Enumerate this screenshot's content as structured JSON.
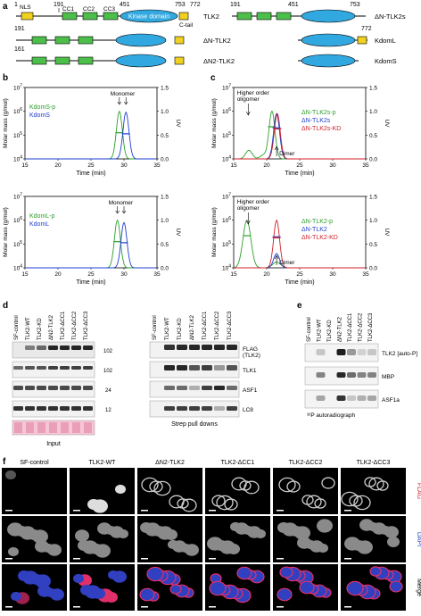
{
  "panel_a": {
    "label": "a",
    "constructs": [
      {
        "name": "TLK2",
        "start": "1",
        "nls": "NLS",
        "cc": [
          "CC1",
          "CC2",
          "CC3"
        ],
        "kinase_label": "Kinase domain",
        "markers": [
          "191",
          "451",
          "753",
          "772"
        ],
        "ctail": "C-tail"
      },
      {
        "name": "ΔN-TLK2",
        "start": "191"
      },
      {
        "name": "ΔN2-TLK2",
        "start": "161"
      },
      {
        "name": "ΔN-TLK2s",
        "markers": [
          "191",
          "451",
          "753"
        ]
      },
      {
        "name": "KdomL",
        "end": "772"
      },
      {
        "name": "KdomS"
      }
    ]
  },
  "panel_b": {
    "label": "b",
    "charts_label_y": "Molar mass (g/mol)",
    "charts_label_y2": "UV",
    "xlabel": "Time (min)"
  },
  "panel_c": {
    "label": "c"
  },
  "chart_data": [
    {
      "type": "line",
      "panel": "b-top",
      "xlabel": "Time (min)",
      "ylabel": "Molar mass (g/mol)",
      "y2label": "UV",
      "xlim": [
        15,
        35
      ],
      "xticks": [
        "15",
        "20",
        "25",
        "30",
        "35"
      ],
      "yticks": [
        "10^4",
        "10^5",
        "10^6",
        "10^7"
      ],
      "y2ticks": [
        "0.0",
        "0.5",
        "1.0",
        "1.5"
      ],
      "y2lim": [
        0,
        1.5
      ],
      "series": [
        {
          "name": "KdomS-p",
          "color": "#2ca02c",
          "peak_x": 29.3,
          "peak": 1.0
        },
        {
          "name": "KdomS",
          "color": "#1f3fd0",
          "peak_x": 30.3,
          "peak": 0.98
        }
      ],
      "annotation": "Monomer"
    },
    {
      "type": "line",
      "panel": "b-bottom",
      "xlabel": "Time (min)",
      "ylabel": "Molar mass (g/mol)",
      "y2label": "UV",
      "xlim": [
        15,
        35
      ],
      "xticks": [
        "15",
        "20",
        "25",
        "30",
        "35"
      ],
      "yticks": [
        "10^4",
        "10^5",
        "10^6",
        "10^7"
      ],
      "y2ticks": [
        "0.0",
        "0.5",
        "1.0",
        "1.5"
      ],
      "y2lim": [
        0,
        1.5
      ],
      "series": [
        {
          "name": "KdomL-p",
          "color": "#2ca02c",
          "peak_x": 29.0,
          "peak": 1.0
        },
        {
          "name": "KdomL",
          "color": "#1f3fd0",
          "peak_x": 30.0,
          "peak": 0.95
        }
      ],
      "annotation": "Monomer"
    },
    {
      "type": "line",
      "panel": "c-top",
      "xlabel": "Time (min)",
      "ylabel": "Molar mass (g/mol)",
      "y2label": "UV",
      "xlim": [
        15,
        35
      ],
      "xticks": [
        "15",
        "20",
        "25",
        "30",
        "35"
      ],
      "yticks": [
        "10^4",
        "10^5",
        "10^6",
        "10^7"
      ],
      "y2ticks": [
        "0.0",
        "0.5",
        "1.0",
        "1.5"
      ],
      "y2lim": [
        0,
        1.5
      ],
      "series": [
        {
          "name": "ΔN-TLK2s-p",
          "color": "#2ca02c",
          "peak_x": 20.8,
          "peak": 1.0
        },
        {
          "name": "ΔN-TLK2s",
          "color": "#1f3fd0",
          "peak_x": 21.5,
          "peak": 0.95
        },
        {
          "name": "ΔN-TLK2s-KD",
          "color": "#d0202a",
          "peak_x": 21.6,
          "peak": 0.95
        }
      ],
      "annotations": [
        "Higher order oligomer",
        "Dimer"
      ]
    },
    {
      "type": "line",
      "panel": "c-bottom",
      "xlabel": "Time (min)",
      "ylabel": "Molar mass (g/mol)",
      "y2label": "UV",
      "xlim": [
        15,
        35
      ],
      "xticks": [
        "15",
        "20",
        "25",
        "30",
        "35"
      ],
      "yticks": [
        "10^4",
        "10^5",
        "10^6",
        "10^7"
      ],
      "y2ticks": [
        "0.0",
        "0.5",
        "1.0",
        "1.5"
      ],
      "y2lim": [
        0,
        1.5
      ],
      "series": [
        {
          "name": "ΔN-TLK2-p",
          "color": "#2ca02c",
          "peak_x": 17.0,
          "peak": 1.0
        },
        {
          "name": "ΔN-TLK2",
          "color": "#1f3fd0",
          "peak_x": 21.5,
          "peak": 0.3
        },
        {
          "name": "ΔN-TLK2-KD",
          "color": "#d0202a",
          "peak_x": 21.5,
          "peak": 1.0
        }
      ],
      "annotations": [
        "Higher order oligomer",
        "Dimer"
      ]
    }
  ],
  "panel_d": {
    "label": "d",
    "lanes": [
      "SF-control",
      "TLK2-WT",
      "TLK2-KD",
      "ΔN2-TLK2",
      "TLK2-ΔCC1",
      "TLK2-ΔCC2",
      "TLK2-ΔCC3"
    ],
    "rows": [
      "FLAG\n(TLK2)",
      "TLK1",
      "ASF1",
      "LC8"
    ],
    "mw_markers": [
      "102",
      "102",
      "24",
      "12"
    ],
    "input_label": "Input",
    "pulldown_label": "Strep pull downs"
  },
  "panel_e": {
    "label": "e",
    "lanes": [
      "SF-control",
      "TLK2-WT",
      "TLK2-KD",
      "ΔN2-TLK2",
      "TLK2-ΔCC1",
      "TLK2-ΔCC2",
      "TLK2-ΔCC3"
    ],
    "rows": [
      "TLK2 [auto-P]",
      "MBP",
      "ASF1a"
    ],
    "footer": "³²P autoradiograph"
  },
  "panel_f": {
    "label": "f",
    "columns": [
      "SF-control",
      "TLK2-WT",
      "ΔN2-TLK2",
      "TLK2-ΔCC1",
      "TLK2-ΔCC2",
      "TLK2-ΔCC3"
    ],
    "channels": [
      {
        "name": "FLAG",
        "color": "#d0202a"
      },
      {
        "name": "DAPI",
        "color": "#2040c0"
      },
      {
        "name": "Merge",
        "color": "#000000"
      }
    ]
  },
  "colors": {
    "green": "#2ca02c",
    "blue": "#1f3fd0",
    "red": "#d0202a",
    "domain_green": "#4cbf4a",
    "domain_blue": "#32a8e0",
    "ctail_yellow": "#f0d020"
  }
}
